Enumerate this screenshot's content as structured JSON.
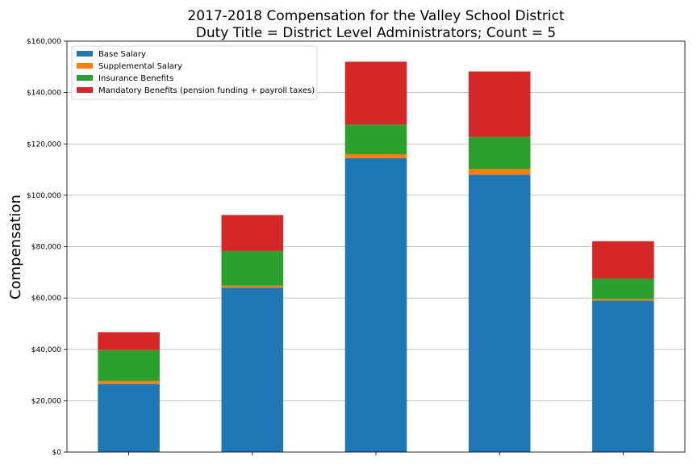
{
  "chart_data": {
    "type": "bar",
    "stacked": true,
    "title": "2017-2018 Compensation for the Valley School District",
    "subtitle": "Duty Title = District Level Administrators; Count = 5",
    "xlabel": "",
    "ylabel": "Compensation",
    "ylim": [
      0,
      160000
    ],
    "yticks": [
      "$0",
      "$20,000",
      "$40,000",
      "$60,000",
      "$80,000",
      "$100,000",
      "$120,000",
      "$140,000",
      "$160,000"
    ],
    "ytick_values": [
      0,
      20000,
      40000,
      60000,
      80000,
      100000,
      120000,
      140000,
      160000
    ],
    "categories": [
      "",
      "",
      "",
      "",
      ""
    ],
    "grid": "horizontal",
    "legend_position": "top-left",
    "series": [
      {
        "name": "Base Salary",
        "color": "#1f77b4",
        "values": [
          26500,
          64000,
          114500,
          108000,
          59000
        ]
      },
      {
        "name": "Supplemental Salary",
        "color": "#ff7f0e",
        "values": [
          1200,
          800,
          1500,
          2200,
          600
        ]
      },
      {
        "name": "Insurance Benefits",
        "color": "#2ca02c",
        "values": [
          12000,
          13500,
          11500,
          12500,
          8000
        ]
      },
      {
        "name": "Mandatory Benefits (pension funding + payroll taxes)",
        "color": "#d62728",
        "values": [
          7000,
          14000,
          24500,
          25500,
          14500
        ]
      }
    ]
  }
}
